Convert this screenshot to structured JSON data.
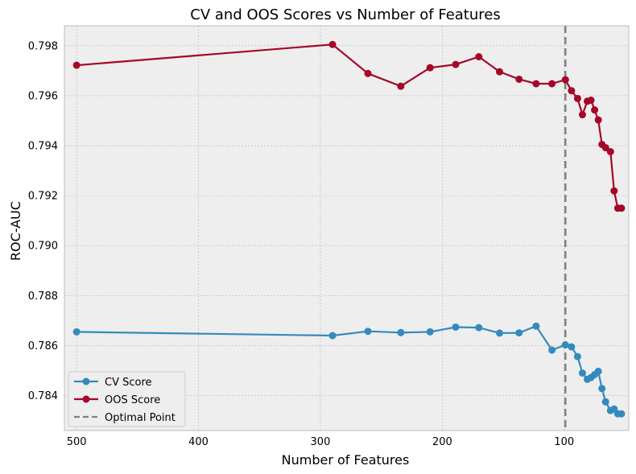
{
  "chart_data": {
    "type": "line",
    "title": "CV and OOS Scores vs Number of Features",
    "xlabel": "Number of Features",
    "ylabel": "ROC-AUC",
    "xlim": [
      510,
      47
    ],
    "ylim": [
      0.7826,
      0.7988
    ],
    "x_inverted": true,
    "grid": true,
    "xticks": [
      500,
      400,
      300,
      200,
      100
    ],
    "xtick_labels": [
      "500",
      "400",
      "300",
      "200",
      "100"
    ],
    "yticks": [
      0.784,
      0.786,
      0.788,
      0.79,
      0.792,
      0.794,
      0.796,
      0.798
    ],
    "ytick_labels": [
      "0.784",
      "0.786",
      "0.788",
      "0.790",
      "0.792",
      "0.794",
      "0.796",
      "0.798"
    ],
    "legend_position": "lower-left",
    "legend": [
      "CV Score",
      "OOS Score",
      "Optimal Point"
    ],
    "x": [
      500,
      290,
      261,
      234,
      210,
      189,
      170,
      153,
      137,
      123,
      110,
      99,
      94,
      89,
      85,
      81,
      78,
      75,
      72,
      69,
      66,
      62,
      59,
      56,
      53
    ],
    "series": [
      {
        "name": "CV Score",
        "color": "#348ABD",
        "values": [
          0.78655,
          0.7864,
          0.78657,
          0.78652,
          0.78655,
          0.78674,
          0.78672,
          0.7865,
          0.78651,
          0.78678,
          0.78582,
          0.78603,
          0.78595,
          0.78556,
          0.7849,
          0.78465,
          0.78472,
          0.78484,
          0.78497,
          0.78428,
          0.78375,
          0.7834,
          0.78346,
          0.78327,
          0.78327
        ]
      },
      {
        "name": "OOS Score",
        "color": "#A60628",
        "values": [
          0.79722,
          0.79805,
          0.79689,
          0.79638,
          0.79712,
          0.79725,
          0.79756,
          0.79696,
          0.79666,
          0.79648,
          0.79648,
          0.79664,
          0.7962,
          0.79589,
          0.79524,
          0.79578,
          0.79582,
          0.79543,
          0.79503,
          0.79405,
          0.79392,
          0.79376,
          0.79219,
          0.7915,
          0.7915
        ]
      }
    ],
    "optimal_x": 99,
    "optimal_color": "#808080"
  }
}
